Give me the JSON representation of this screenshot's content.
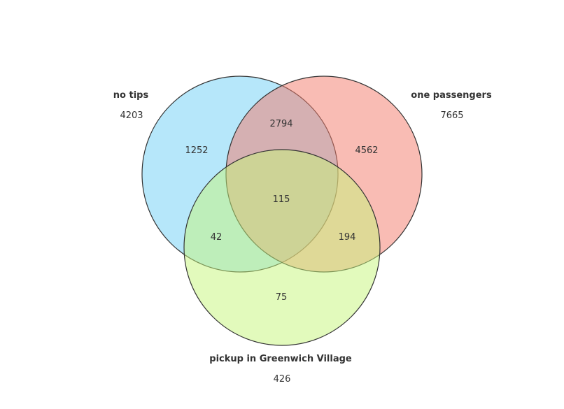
{
  "sets": [
    {
      "id": "A",
      "name": "no tips",
      "total": "4203",
      "color": "#6ecff6"
    },
    {
      "id": "B",
      "name": "one passengers",
      "total": "7665",
      "color": "#f4796a"
    },
    {
      "id": "C",
      "name": "pickup in Greenwich Village",
      "total": "426",
      "color": "#c6f57a"
    }
  ],
  "regions": {
    "A_only": "1252",
    "B_only": "4562",
    "C_only": "75",
    "AB": "2794",
    "AC": "42",
    "BC": "194",
    "ABC": "115"
  },
  "chart_data": {
    "type": "venn",
    "sets": [
      "no tips",
      "one passengers",
      "pickup in Greenwich Village"
    ],
    "set_totals": [
      4203,
      7665,
      426
    ],
    "regions": [
      {
        "sets": [
          "no tips"
        ],
        "value": 1252
      },
      {
        "sets": [
          "one passengers"
        ],
        "value": 4562
      },
      {
        "sets": [
          "pickup in Greenwich Village"
        ],
        "value": 75
      },
      {
        "sets": [
          "no tips",
          "one passengers"
        ],
        "value": 2794
      },
      {
        "sets": [
          "no tips",
          "pickup in Greenwich Village"
        ],
        "value": 42
      },
      {
        "sets": [
          "one passengers",
          "pickup in Greenwich Village"
        ],
        "value": 194
      },
      {
        "sets": [
          "no tips",
          "one passengers",
          "pickup in Greenwich Village"
        ],
        "value": 115
      }
    ]
  }
}
